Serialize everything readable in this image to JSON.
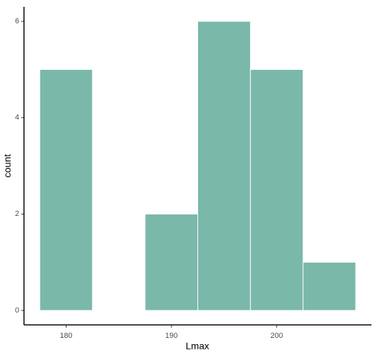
{
  "chart_data": {
    "type": "histogram",
    "x_label": "Lmax",
    "y_label": "count",
    "bins": [
      177.5,
      182.5,
      187.5,
      192.5,
      197.5,
      202.5,
      207.5
    ],
    "values": [
      5,
      0,
      2,
      6,
      5,
      1
    ],
    "color": "#7ab8aa",
    "xlim": [
      176,
      209
    ],
    "ylim": [
      -0.3,
      6.3
    ],
    "xticks": [
      180,
      190,
      200
    ],
    "yticks": [
      0,
      2,
      4,
      6
    ]
  }
}
